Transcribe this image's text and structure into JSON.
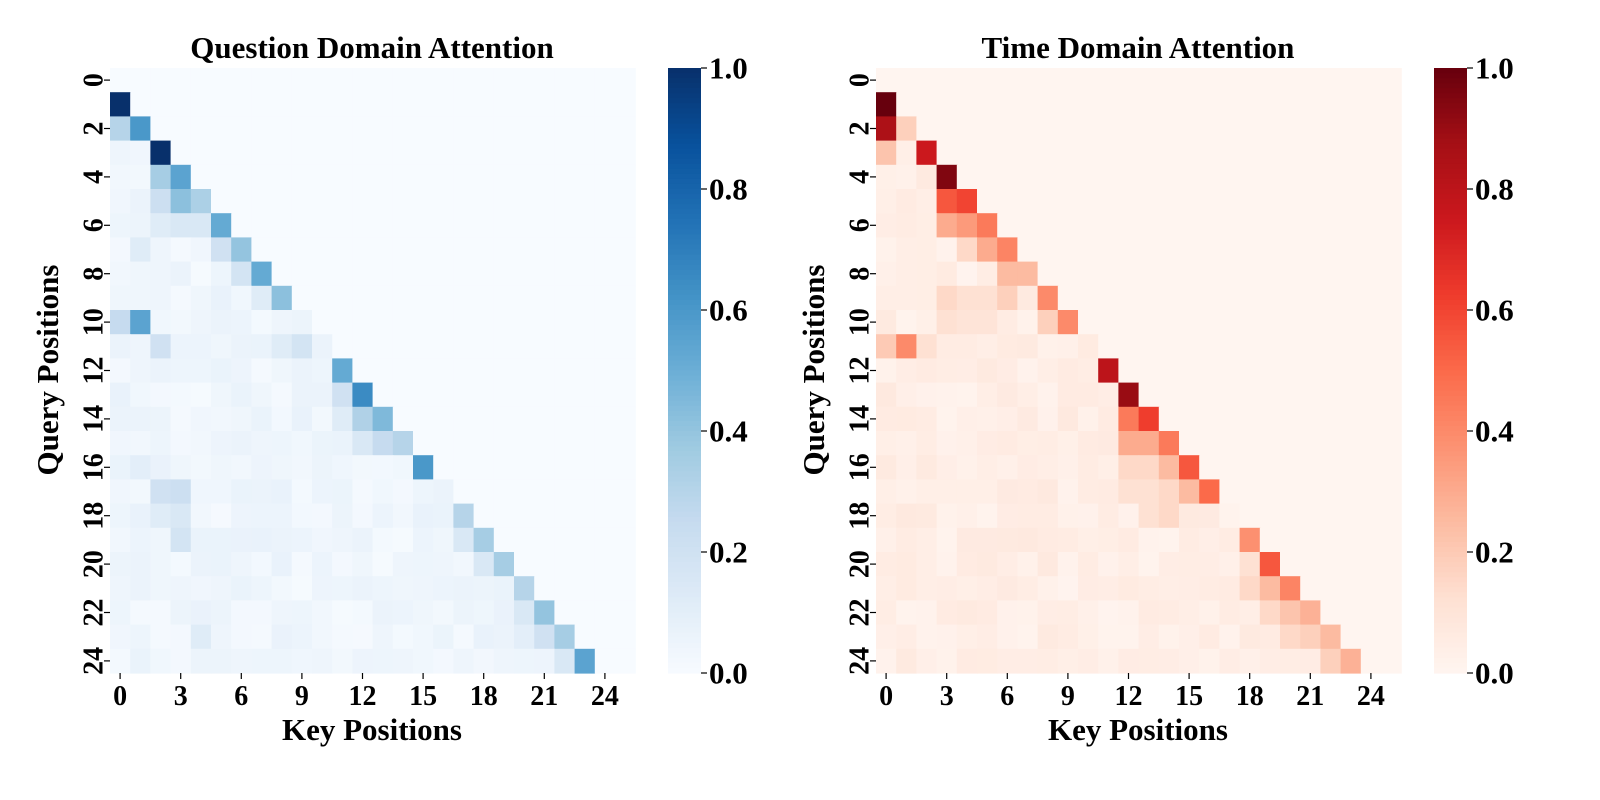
{
  "chart_data": [
    {
      "type": "heatmap",
      "title": "Question Domain Attention",
      "xlabel": "Key Positions",
      "ylabel": "Query Positions",
      "x_ticks": [
        "0",
        "3",
        "6",
        "9",
        "12",
        "15",
        "18",
        "21",
        "24"
      ],
      "y_ticks": [
        "0",
        "2",
        "4",
        "6",
        "8",
        "10",
        "12",
        "14",
        "16",
        "18",
        "20",
        "22",
        "24"
      ],
      "colorbar_ticks": [
        "0.0",
        "0.2",
        "0.4",
        "0.6",
        "0.8",
        "1.0"
      ],
      "colorbar_range": [
        0,
        1
      ],
      "colormap": "Blues",
      "color_low": "#f7fbff",
      "color_high": "#08306b",
      "n_rows": 25,
      "n_cols": 26,
      "causal": true,
      "strong_cells": [
        [
          1,
          0,
          1.0
        ],
        [
          2,
          0,
          0.3
        ],
        [
          2,
          1,
          0.6
        ],
        [
          3,
          2,
          1.0
        ],
        [
          4,
          2,
          0.35
        ],
        [
          4,
          3,
          0.55
        ],
        [
          5,
          2,
          0.22
        ],
        [
          5,
          3,
          0.42
        ],
        [
          5,
          4,
          0.33
        ],
        [
          6,
          2,
          0.12
        ],
        [
          6,
          3,
          0.15
        ],
        [
          6,
          4,
          0.15
        ],
        [
          6,
          5,
          0.52
        ],
        [
          7,
          1,
          0.12
        ],
        [
          7,
          5,
          0.2
        ],
        [
          7,
          6,
          0.4
        ],
        [
          8,
          6,
          0.18
        ],
        [
          8,
          7,
          0.52
        ],
        [
          9,
          7,
          0.12
        ],
        [
          9,
          8,
          0.42
        ],
        [
          10,
          0,
          0.25
        ],
        [
          10,
          1,
          0.55
        ],
        [
          11,
          2,
          0.2
        ],
        [
          11,
          8,
          0.12
        ],
        [
          11,
          9,
          0.18
        ],
        [
          12,
          11,
          0.52
        ],
        [
          13,
          11,
          0.2
        ],
        [
          13,
          12,
          0.65
        ],
        [
          14,
          11,
          0.12
        ],
        [
          14,
          12,
          0.32
        ],
        [
          14,
          13,
          0.45
        ],
        [
          15,
          12,
          0.15
        ],
        [
          15,
          13,
          0.25
        ],
        [
          15,
          14,
          0.3
        ],
        [
          16,
          1,
          0.1
        ],
        [
          16,
          15,
          0.6
        ],
        [
          17,
          2,
          0.2
        ],
        [
          17,
          3,
          0.22
        ],
        [
          18,
          2,
          0.12
        ],
        [
          18,
          3,
          0.15
        ],
        [
          18,
          17,
          0.3
        ],
        [
          19,
          3,
          0.18
        ],
        [
          19,
          17,
          0.15
        ],
        [
          19,
          18,
          0.35
        ],
        [
          20,
          18,
          0.15
        ],
        [
          20,
          19,
          0.35
        ],
        [
          21,
          20,
          0.3
        ],
        [
          22,
          20,
          0.15
        ],
        [
          22,
          21,
          0.4
        ],
        [
          23,
          4,
          0.12
        ],
        [
          23,
          20,
          0.1
        ],
        [
          23,
          21,
          0.2
        ],
        [
          23,
          22,
          0.35
        ],
        [
          24,
          22,
          0.15
        ],
        [
          24,
          23,
          0.55
        ]
      ]
    },
    {
      "type": "heatmap",
      "title": "Time Domain Attention",
      "xlabel": "Key Positions",
      "ylabel": "Query Positions",
      "x_ticks": [
        "0",
        "3",
        "6",
        "9",
        "12",
        "15",
        "18",
        "21",
        "24"
      ],
      "y_ticks": [
        "0",
        "2",
        "4",
        "6",
        "8",
        "10",
        "12",
        "14",
        "16",
        "18",
        "20",
        "22",
        "24"
      ],
      "colorbar_ticks": [
        "0.0",
        "0.2",
        "0.4",
        "0.6",
        "0.8",
        "1.0"
      ],
      "colorbar_range": [
        0,
        1
      ],
      "colormap": "Reds",
      "color_low": "#fff5f0",
      "color_high": "#67000d",
      "n_rows": 25,
      "n_cols": 26,
      "causal": true,
      "strong_cells": [
        [
          1,
          0,
          1.0
        ],
        [
          2,
          0,
          0.85
        ],
        [
          2,
          1,
          0.18
        ],
        [
          3,
          0,
          0.22
        ],
        [
          3,
          2,
          0.75
        ],
        [
          4,
          3,
          0.95
        ],
        [
          5,
          3,
          0.55
        ],
        [
          5,
          4,
          0.6
        ],
        [
          6,
          3,
          0.3
        ],
        [
          6,
          4,
          0.35
        ],
        [
          6,
          5,
          0.45
        ],
        [
          7,
          4,
          0.15
        ],
        [
          7,
          5,
          0.3
        ],
        [
          7,
          6,
          0.42
        ],
        [
          8,
          6,
          0.25
        ],
        [
          8,
          7,
          0.25
        ],
        [
          9,
          3,
          0.15
        ],
        [
          9,
          4,
          0.12
        ],
        [
          9,
          5,
          0.12
        ],
        [
          9,
          6,
          0.18
        ],
        [
          9,
          8,
          0.4
        ],
        [
          10,
          3,
          0.12
        ],
        [
          10,
          4,
          0.1
        ],
        [
          10,
          5,
          0.1
        ],
        [
          10,
          8,
          0.18
        ],
        [
          10,
          9,
          0.4
        ],
        [
          11,
          0,
          0.2
        ],
        [
          11,
          1,
          0.4
        ],
        [
          11,
          2,
          0.12
        ],
        [
          12,
          11,
          0.8
        ],
        [
          13,
          12,
          0.9
        ],
        [
          14,
          12,
          0.45
        ],
        [
          14,
          13,
          0.62
        ],
        [
          15,
          12,
          0.3
        ],
        [
          15,
          13,
          0.3
        ],
        [
          15,
          14,
          0.45
        ],
        [
          16,
          12,
          0.15
        ],
        [
          16,
          13,
          0.15
        ],
        [
          16,
          14,
          0.25
        ],
        [
          16,
          15,
          0.55
        ],
        [
          17,
          12,
          0.12
        ],
        [
          17,
          13,
          0.12
        ],
        [
          17,
          14,
          0.15
        ],
        [
          17,
          15,
          0.25
        ],
        [
          17,
          16,
          0.5
        ],
        [
          18,
          13,
          0.12
        ],
        [
          18,
          14,
          0.15
        ],
        [
          19,
          18,
          0.38
        ],
        [
          20,
          18,
          0.12
        ],
        [
          20,
          19,
          0.55
        ],
        [
          21,
          18,
          0.15
        ],
        [
          21,
          19,
          0.25
        ],
        [
          21,
          20,
          0.42
        ],
        [
          22,
          19,
          0.15
        ],
        [
          22,
          20,
          0.22
        ],
        [
          22,
          21,
          0.28
        ],
        [
          23,
          20,
          0.15
        ],
        [
          23,
          21,
          0.18
        ],
        [
          23,
          22,
          0.25
        ],
        [
          24,
          22,
          0.18
        ],
        [
          24,
          23,
          0.28
        ]
      ]
    }
  ]
}
